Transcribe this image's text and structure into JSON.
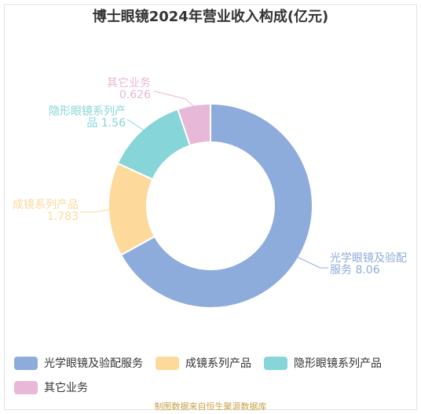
{
  "title": "博士眼镜2024年营业收入构成(亿元)",
  "source": "制图数据来自恒生聚源数据库",
  "chart_data": {
    "type": "pie",
    "variant": "donut",
    "title": "博士眼镜2024年营业收入构成(亿元)",
    "legend_position": "bottom",
    "series": [
      {
        "name": "光学眼镜及验配服务",
        "value": 8.06,
        "label_lines": [
          "光学眼镜及验配",
          "服务 8.06"
        ],
        "color": "#8eacdb"
      },
      {
        "name": "成镜系列产品",
        "value": 1.783,
        "label_lines": [
          "成镜系列产品",
          "1.783"
        ],
        "color": "#fdd99b"
      },
      {
        "name": "隐形眼镜系列产品",
        "value": 1.56,
        "label_lines": [
          "隐形眼镜系列产",
          "品 1.56"
        ],
        "color": "#86d5d8"
      },
      {
        "name": "其它业务",
        "value": 0.626,
        "label_lines": [
          "其它业务",
          "0.626"
        ],
        "color": "#e8b8d8"
      }
    ]
  }
}
